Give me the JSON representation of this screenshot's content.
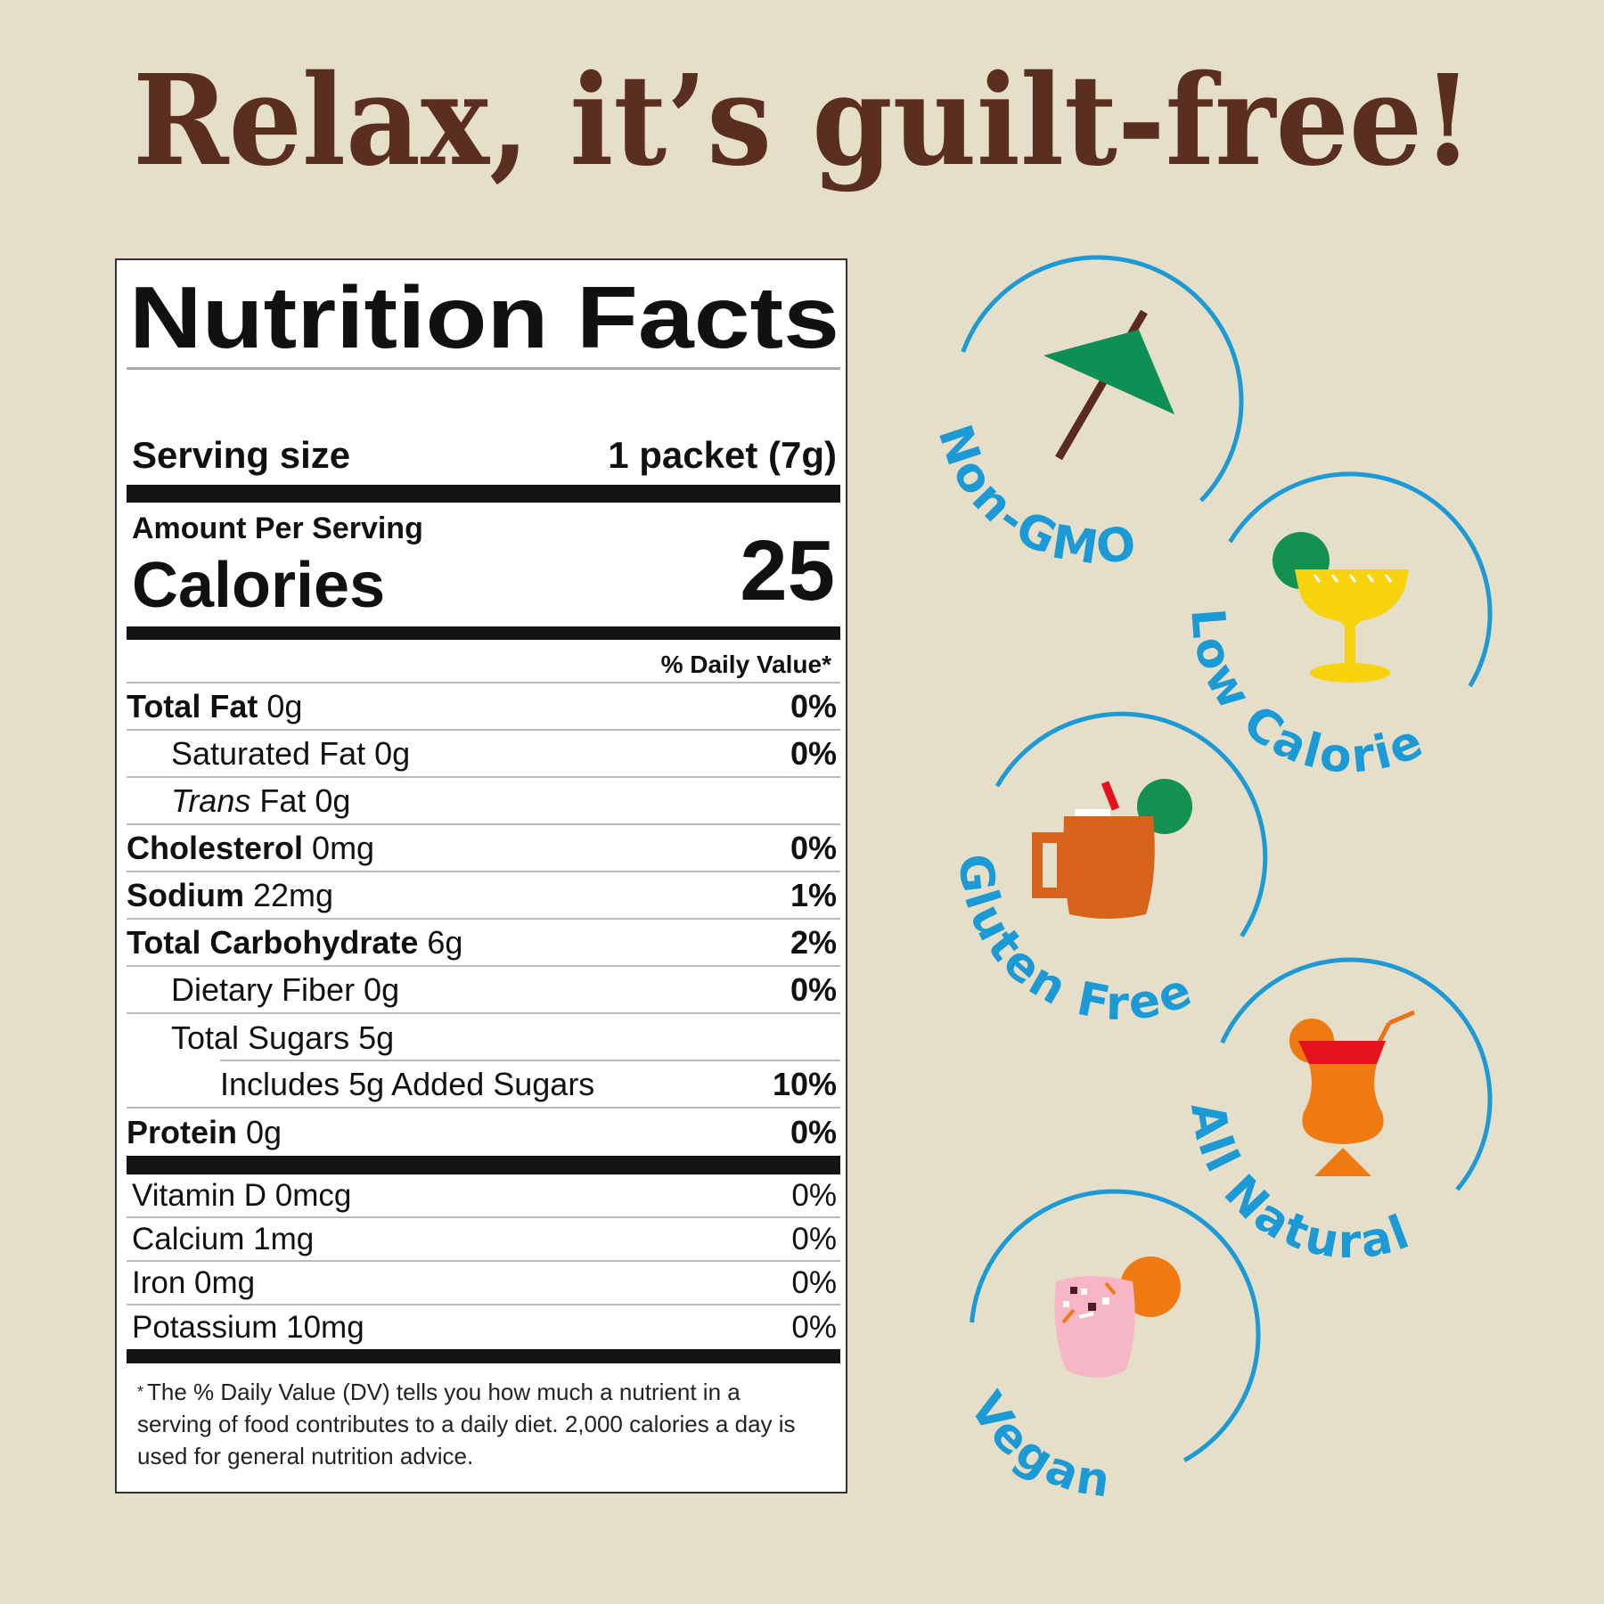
{
  "headline": "Relax, it’s guilt-free!",
  "colors": {
    "background": "#e5dfca",
    "headline": "#5b2f20",
    "badge_blue": "#1b9ad5",
    "label_black": "#141414"
  },
  "label": {
    "title": "Nutrition Facts",
    "serving_size_label": "Serving size",
    "serving_size_value": "1 packet (7g)",
    "amount_per_serving": "Amount Per Serving",
    "calories_label": "Calories",
    "calories_value": "25",
    "daily_value_header": "% Daily Value*",
    "nutrients": [
      {
        "name": "Total Fat",
        "amount": " 0g",
        "pct": "0%"
      },
      {
        "name": "Saturated Fat 0g",
        "amount": "",
        "pct": "0%"
      },
      {
        "name_italic": "Trans",
        "name": " Fat 0g",
        "amount": "",
        "pct": ""
      },
      {
        "name": "Cholesterol",
        "amount": " 0mg",
        "pct": "0%"
      },
      {
        "name": "Sodium",
        "amount": " 22mg",
        "pct": "1%"
      },
      {
        "name": "Total Carbohydrate",
        "amount": " 6g",
        "pct": "2%"
      },
      {
        "name": "Dietary Fiber 0g",
        "amount": "",
        "pct": "0%"
      },
      {
        "name": "Total Sugars 5g",
        "amount": "",
        "pct": ""
      },
      {
        "name": "Includes 5g Added Sugars",
        "amount": "",
        "pct": "10%"
      },
      {
        "name": "Protein",
        "amount": " 0g",
        "pct": "0%"
      }
    ],
    "vitamins": [
      {
        "name": "Vitamin D 0mcg",
        "pct": "0%"
      },
      {
        "name": "Calcium 1mg",
        "pct": "0%"
      },
      {
        "name": "Iron 0mg",
        "pct": "0%"
      },
      {
        "name": "Potassium 10mg",
        "pct": "0%"
      }
    ],
    "footnote_star": "*",
    "footnote": "The % Daily Value (DV) tells you how much a nutrient in a serving of food contributes to a daily diet. 2,000 calories a day is used for general nutrition advice."
  },
  "badges": [
    {
      "label": "Non-GMO",
      "icon": "cocktail-umbrella-icon"
    },
    {
      "label": "Low Calorie",
      "icon": "margarita-glass-icon"
    },
    {
      "label": "Gluten Free",
      "icon": "copper-mug-icon"
    },
    {
      "label": "All Natural",
      "icon": "hurricane-glass-icon"
    },
    {
      "label": "Vegan",
      "icon": "pink-cocktail-icon"
    }
  ]
}
